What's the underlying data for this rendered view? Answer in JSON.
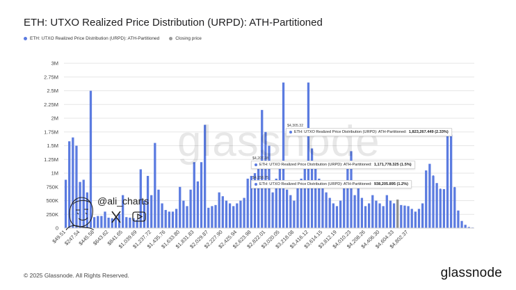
{
  "title": "ETH: UTXO Realized Price Distribution (URPD): ATH-Partitioned",
  "legend": [
    {
      "label": "ETH: UTXO Realized Price Distribution (URPD): ATH-Partitioned",
      "color": "#5b7be0"
    },
    {
      "label": "Closing price",
      "color": "#9a9a9a"
    }
  ],
  "watermark": "glassnode",
  "social": {
    "handle": "@ali_charts",
    "x_icon": "x-logo-icon",
    "youtube_icon": "youtube-icon",
    "avatar": "cartoon-face-icon"
  },
  "tooltips": [
    {
      "price": "$4,305.32",
      "label": "ETH: UTXO Realized Price Distribution (URPD): ATH-Partitioned:",
      "value": "1,823,267.449 (2.33%)"
    },
    {
      "price": "$4,207.28",
      "label": "ETH: UTXO Realized Price Distribution (URPD): ATH-Partitioned:",
      "value": "1,171,778.325 (1.5%)"
    },
    {
      "price": "$4,158.75",
      "label": "ETH: UTXO Realized Price Distribution (URPD): ATH-Partitioned:",
      "value": "938,205.895 (1.2%)"
    }
  ],
  "footer": "© 2025 Glassnode. All Rights Reserved.",
  "brand": "glassnode",
  "chart_data": {
    "type": "bar",
    "title": "ETH: UTXO Realized Price Distribution (URPD): ATH-Partitioned",
    "xlabel": "",
    "ylabel": "",
    "ylim": [
      0,
      3000000
    ],
    "y_ticks": [
      "0",
      "250K",
      "500K",
      "750K",
      "1M",
      "1.25M",
      "1.5M",
      "1.75M",
      "2M",
      "2.25M",
      "2.5M",
      "2.75M",
      "3M"
    ],
    "x_tick_labels": [
      "$49.51",
      "$247.54",
      "$445.58",
      "$643.62",
      "$841.65",
      "$1,039.69",
      "$1,237.72",
      "$1,435.76",
      "$1,633.80",
      "$1,831.83",
      "$2,029.87",
      "$2,227.90",
      "$2,425.94",
      "$2,623.98",
      "$2,822.01",
      "$3,020.05",
      "$3,218.08",
      "$3,416.12",
      "$3,614.15",
      "$3,812.19",
      "$4,010.23",
      "$4,208.26",
      "$4,406.30",
      "$4,604.33",
      "$4,802.37"
    ],
    "bin_width": 49.51,
    "x_start": 49.51,
    "closing_price_bin": 93,
    "grid": true,
    "values": [
      880000,
      1580000,
      1650000,
      1500000,
      840000,
      880000,
      650000,
      2500000,
      200000,
      220000,
      220000,
      300000,
      190000,
      180000,
      190000,
      260000,
      600000,
      200000,
      190000,
      180000,
      150000,
      1070000,
      500000,
      950000,
      600000,
      1550000,
      700000,
      450000,
      330000,
      300000,
      300000,
      350000,
      750000,
      500000,
      400000,
      700000,
      1200000,
      850000,
      1200000,
      1880000,
      370000,
      400000,
      420000,
      650000,
      580000,
      500000,
      450000,
      400000,
      450000,
      500000,
      550000,
      900000,
      950000,
      1000000,
      1200000,
      2150000,
      1750000,
      1500000,
      650000,
      900000,
      1150000,
      2650000,
      700000,
      600000,
      500000,
      850000,
      900000,
      1200000,
      2650000,
      1450000,
      1100000,
      900000,
      800000,
      650000,
      550000,
      450000,
      400000,
      500000,
      750000,
      1200000,
      1400000,
      600000,
      800000,
      550000,
      400000,
      450000,
      600000,
      500000,
      450000,
      400000,
      600000,
      500000,
      450000,
      520000,
      420000,
      410000,
      400000,
      350000,
      300000,
      350000,
      450000,
      1050000,
      1170000,
      940000,
      820000,
      700000,
      710000,
      1820000,
      1700000,
      730000,
      320000,
      130000,
      60000,
      20000,
      10000
    ]
  }
}
